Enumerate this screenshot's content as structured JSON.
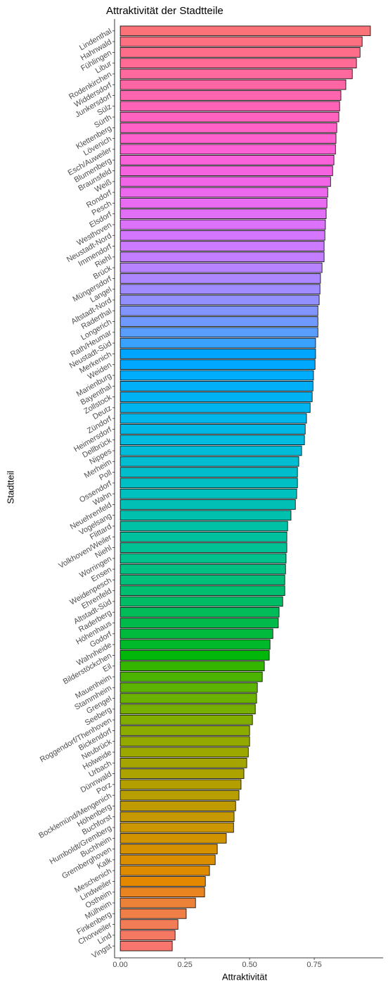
{
  "chart_data": {
    "type": "barh",
    "title": "Attraktivität der Stadtteile",
    "x_label": "Attraktivität",
    "y_label": "Stadtteil",
    "categories": [
      "Lindenthal",
      "Hahnwald",
      "Fühlingen",
      "Libur",
      "Rodenkirchen",
      "Widdersdorf",
      "Junkersdorf",
      "Sülz",
      "Sürth",
      "Klettenberg",
      "Lövenich",
      "Esch/Auweiler",
      "Blumenberg",
      "Braunsfeld",
      "Weiß",
      "Rondorf",
      "Pesch",
      "Elsdorf",
      "Westhoven",
      "Neustadt-Nord",
      "Immendorf",
      "Riehl",
      "Brück",
      "Müngersdorf",
      "Langel",
      "Altstadt-Nord",
      "Raderthal",
      "Longerich",
      "Rath/Heumar",
      "Neustadt-Süd",
      "Merkenich",
      "Weiden",
      "Marienburg",
      "Bayenthal",
      "Zollstock",
      "Deutz",
      "Zündorf",
      "Heimersdorf",
      "Dellbrück",
      "Nippes",
      "Merheim",
      "Poll",
      "Ossendorf",
      "Wahn",
      "Neuehrenfeld",
      "Vogelsang",
      "Flittard",
      "Volkhoven/Weiler",
      "Niehl",
      "Worringen",
      "Ensen",
      "Weidenpesch",
      "Ehrenfeld",
      "Altstadt-Süd",
      "Raderberg",
      "Höhenhaus",
      "Godorf",
      "Wahnheide",
      "Bilderstöckchen",
      "Eil",
      "Mauenheim",
      "Stammheim",
      "Grengel",
      "Seeberg",
      "Roggendorf/Thenhoven",
      "Bickendorf",
      "Neubrück",
      "Holweide",
      "Urbach",
      "Dünnwald",
      "Porz",
      "Bocklemünd/Mengenich",
      "Höhenberg",
      "Buchforst",
      "Humboldt/Gremberg",
      "Buchheim",
      "Gremberghoven",
      "Kalk",
      "Meschenich",
      "Lindweiler",
      "Ostheim",
      "Mülheim",
      "Finkenberg",
      "Chorweiler",
      "Lind",
      "Vingst"
    ],
    "values": [
      0.967,
      0.935,
      0.927,
      0.913,
      0.897,
      0.872,
      0.853,
      0.848,
      0.845,
      0.837,
      0.834,
      0.832,
      0.826,
      0.821,
      0.813,
      0.802,
      0.799,
      0.796,
      0.793,
      0.791,
      0.788,
      0.788,
      0.78,
      0.774,
      0.772,
      0.769,
      0.764,
      0.764,
      0.764,
      0.755,
      0.755,
      0.753,
      0.747,
      0.745,
      0.742,
      0.734,
      0.72,
      0.715,
      0.712,
      0.701,
      0.69,
      0.685,
      0.685,
      0.682,
      0.677,
      0.66,
      0.647,
      0.644,
      0.644,
      0.641,
      0.639,
      0.636,
      0.636,
      0.628,
      0.614,
      0.611,
      0.59,
      0.579,
      0.576,
      0.557,
      0.549,
      0.53,
      0.527,
      0.522,
      0.511,
      0.5,
      0.5,
      0.495,
      0.489,
      0.478,
      0.467,
      0.459,
      0.446,
      0.44,
      0.438,
      0.41,
      0.375,
      0.367,
      0.345,
      0.329,
      0.326,
      0.291,
      0.255,
      0.223,
      0.212,
      0.201
    ],
    "color_palette": "hue",
    "bar_outline": "#000000",
    "xlim": [
      -0.022,
      1.016
    ],
    "xticks": [
      {
        "value": 0,
        "label": "0.00"
      },
      0.25,
      {
        "value": 0.5,
        "label": "0.50"
      },
      0.75
    ],
    "grid": false
  }
}
